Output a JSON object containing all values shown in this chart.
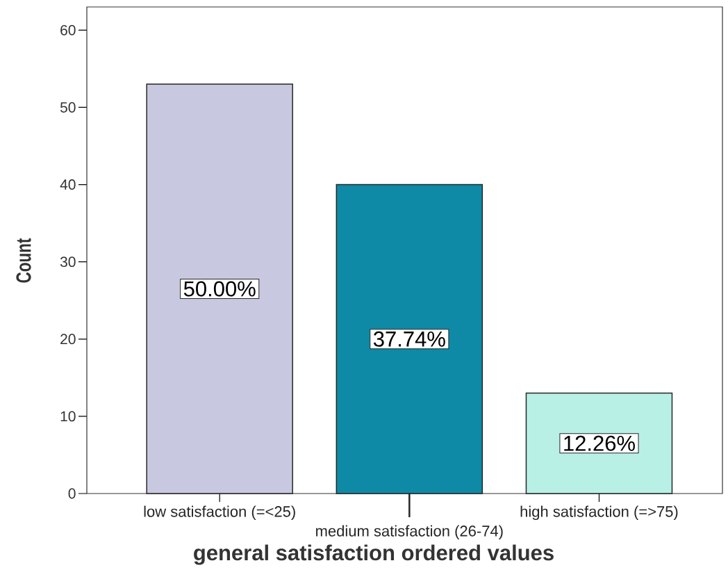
{
  "chart_data": {
    "type": "bar",
    "xlabel": "general satisfaction ordered values",
    "ylabel": "Count",
    "categories": [
      "low satisfaction (=<25)",
      "medium satisfaction (26-74)",
      "high satisfaction (=>75)"
    ],
    "values": [
      53,
      40,
      13
    ],
    "colors": [
      "#c8c8e0",
      "#0e8aa6",
      "#b8f0e6"
    ],
    "annotations": [
      "50.00%",
      "37.74%",
      "12.26%"
    ],
    "ylim": [
      0,
      63
    ],
    "yticks": [
      0,
      10,
      20,
      30,
      40,
      50,
      60
    ],
    "grid": false
  }
}
